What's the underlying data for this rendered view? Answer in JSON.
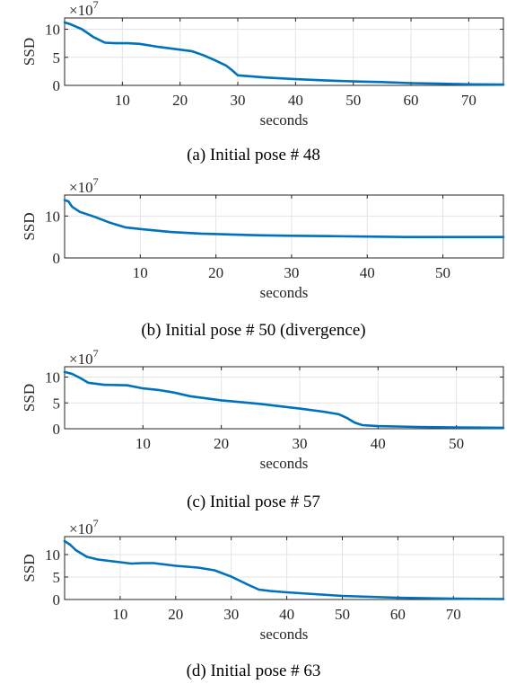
{
  "chart_data": [
    {
      "type": "line",
      "caption": "(a) Initial pose # 48",
      "xlabel": "seconds",
      "ylabel": "SSD",
      "exponent_base": "×10",
      "exponent_power": "7",
      "xlim": [
        0,
        76
      ],
      "ylim": [
        0,
        12
      ],
      "xticks": [
        10,
        20,
        30,
        40,
        50,
        60,
        70
      ],
      "yticks": [
        0,
        5,
        10
      ],
      "grid": true,
      "color": "#0072BD",
      "series": [
        {
          "x": [
            0,
            1,
            3,
            5,
            7,
            9,
            11,
            13,
            16,
            19,
            22,
            24,
            26,
            28,
            29,
            30,
            35,
            40,
            45,
            50,
            55,
            60,
            65,
            70,
            76
          ],
          "y": [
            11.2,
            10.9,
            10.0,
            8.6,
            7.6,
            7.5,
            7.5,
            7.4,
            6.9,
            6.5,
            6.1,
            5.4,
            4.5,
            3.5,
            2.7,
            1.8,
            1.4,
            1.1,
            0.9,
            0.7,
            0.6,
            0.4,
            0.3,
            0.2,
            0.15
          ]
        }
      ]
    },
    {
      "type": "line",
      "caption": "(b) Initial pose # 50 (divergence)",
      "xlabel": "seconds",
      "ylabel": "SSD",
      "exponent_base": "×10",
      "exponent_power": "7",
      "xlim": [
        0,
        58
      ],
      "ylim": [
        0,
        15
      ],
      "xticks": [
        10,
        20,
        30,
        40,
        50
      ],
      "yticks": [
        0,
        10
      ],
      "grid": true,
      "color": "#0072BD",
      "series": [
        {
          "x": [
            0,
            0.5,
            1,
            2,
            4,
            6,
            8,
            10,
            14,
            18,
            22,
            26,
            30,
            35,
            40,
            45,
            50,
            58
          ],
          "y": [
            13.8,
            13.5,
            12.2,
            11.0,
            9.8,
            8.4,
            7.3,
            6.9,
            6.2,
            5.8,
            5.6,
            5.4,
            5.3,
            5.2,
            5.1,
            5.0,
            5.0,
            5.0
          ]
        }
      ]
    },
    {
      "type": "line",
      "caption": "(c) Initial pose # 57",
      "xlabel": "seconds",
      "ylabel": "SSD",
      "exponent_base": "×10",
      "exponent_power": "7",
      "xlim": [
        0,
        56
      ],
      "ylim": [
        0,
        12
      ],
      "xticks": [
        10,
        20,
        30,
        40,
        50
      ],
      "yticks": [
        0,
        5,
        10
      ],
      "grid": true,
      "color": "#0072BD",
      "series": [
        {
          "x": [
            0,
            1,
            2,
            3,
            5,
            8,
            10,
            12,
            14,
            16,
            20,
            25,
            30,
            33,
            35,
            36,
            37,
            38,
            40,
            45,
            50,
            56
          ],
          "y": [
            11.0,
            10.6,
            9.8,
            8.9,
            8.5,
            8.4,
            7.8,
            7.5,
            7.0,
            6.3,
            5.5,
            4.8,
            3.9,
            3.3,
            2.8,
            2.1,
            1.2,
            0.7,
            0.5,
            0.35,
            0.25,
            0.2
          ]
        }
      ]
    },
    {
      "type": "line",
      "caption": "(d) Initial pose # 63",
      "xlabel": "seconds",
      "ylabel": "SSD",
      "exponent_base": "×10",
      "exponent_power": "7",
      "xlim": [
        0,
        79
      ],
      "ylim": [
        0,
        14
      ],
      "xticks": [
        10,
        20,
        30,
        40,
        50,
        60,
        70
      ],
      "yticks": [
        0,
        5,
        10
      ],
      "grid": true,
      "color": "#0072BD",
      "series": [
        {
          "x": [
            0,
            1,
            2,
            4,
            6,
            8,
            10,
            12,
            14,
            16,
            18,
            20,
            24,
            27,
            30,
            33,
            35,
            37,
            40,
            45,
            50,
            55,
            60,
            65,
            70,
            79
          ],
          "y": [
            13.0,
            12.2,
            11.0,
            9.5,
            8.9,
            8.6,
            8.3,
            8.0,
            8.1,
            8.1,
            7.8,
            7.5,
            7.1,
            6.5,
            5.1,
            3.3,
            2.2,
            1.9,
            1.6,
            1.2,
            0.8,
            0.6,
            0.4,
            0.3,
            0.2,
            0.1
          ]
        }
      ]
    }
  ]
}
